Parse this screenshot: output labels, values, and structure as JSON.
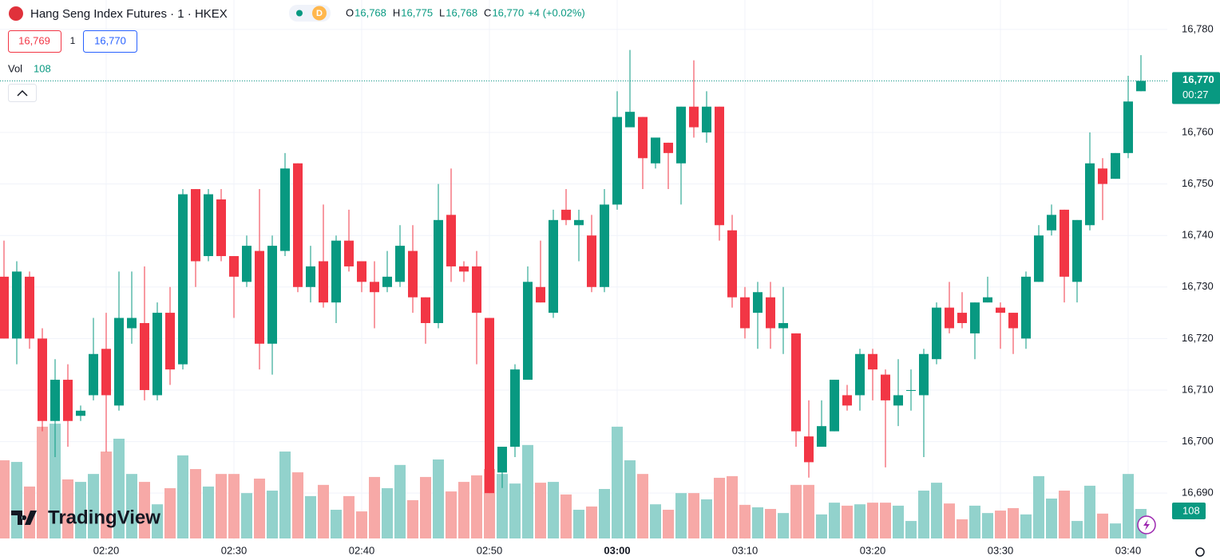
{
  "chart_data": {
    "type": "candlestick",
    "title": "Hang Seng Index Futures · 1 · HKEX",
    "badge": "D",
    "legend_keys": [
      "O",
      "H",
      "L",
      "C"
    ],
    "legend_values": [
      "16,768",
      "16,775",
      "16,768",
      "16,770"
    ],
    "change": "+4 (+0.02%)",
    "bid": "16,769",
    "spread": "1",
    "ask": "16,770",
    "volume_label": "Vol",
    "volume_value": "108",
    "last_price": {
      "value": 16770,
      "label": "16,770"
    },
    "countdown": "00:27",
    "last_volume": "108",
    "logo": "TradingView",
    "categories": [
      null,
      null,
      null,
      null,
      null,
      null,
      null,
      null,
      "02:20",
      null,
      null,
      null,
      null,
      null,
      null,
      null,
      null,
      null,
      "02:30",
      null,
      null,
      null,
      null,
      null,
      null,
      null,
      null,
      null,
      "02:40",
      null,
      null,
      null,
      null,
      null,
      null,
      null,
      null,
      null,
      "02:50",
      null,
      null,
      null,
      null,
      null,
      null,
      null,
      null,
      null,
      "03:00",
      null,
      null,
      null,
      null,
      null,
      null,
      null,
      null,
      null,
      "03:10",
      null,
      null,
      null,
      null,
      null,
      null,
      null,
      null,
      null,
      "03:20",
      null,
      null,
      null,
      null,
      null,
      null,
      null,
      null,
      null,
      "03:30",
      null,
      null,
      null,
      null,
      null,
      null,
      null,
      null,
      null,
      "03:40",
      null
    ],
    "open": [
      16732,
      16720,
      16732,
      16720,
      16704,
      16712,
      16705,
      16709,
      16718,
      16707,
      16722,
      16723,
      16709,
      16725,
      16715,
      16749,
      16736,
      16747,
      16736,
      16731,
      16737,
      16719,
      16737,
      16754,
      16730,
      16735,
      16727,
      16739,
      16735,
      16731,
      16730,
      16731,
      16737,
      16728,
      16723,
      16744,
      16734,
      16734,
      16724,
      16694,
      16699,
      16712,
      16730,
      16725,
      16745,
      16742,
      16740,
      16730,
      16746,
      16761,
      16763,
      16754,
      16758,
      16754,
      16765,
      16760,
      16765,
      16741,
      16728,
      16725,
      16728,
      16722,
      16721,
      16701,
      16699,
      16702,
      16709,
      16709,
      16717,
      16713,
      16707,
      16710,
      16709,
      16716,
      16726,
      16725,
      16721,
      16727,
      16726,
      16725,
      16720,
      16731,
      16741,
      16745,
      16731,
      16742,
      16753,
      16751,
      16756,
      16768
    ],
    "high": [
      16739,
      16735,
      16733,
      16722,
      16716,
      16715,
      16707,
      16724,
      16725,
      16733,
      16733,
      16734,
      16727,
      16730,
      16749,
      16749,
      16749,
      16749,
      16736,
      16740,
      16749,
      16740,
      16756,
      16754,
      16738,
      16746,
      16740,
      16745,
      16735,
      16735,
      16737,
      16742,
      16742,
      16728,
      16750,
      16753,
      16735,
      16737,
      16724,
      16699,
      16715,
      16734,
      16739,
      16745,
      16749,
      16745,
      16744,
      16749,
      16768,
      16776,
      16763,
      16759,
      16758,
      16765,
      16774,
      16768,
      16765,
      16744,
      16730,
      16731,
      16731,
      16730,
      16721,
      16708,
      16708,
      16712,
      16711,
      16718,
      16718,
      16714,
      16716,
      16714,
      16718,
      16727,
      16731,
      16729,
      16727,
      16732,
      16727,
      16725,
      16733,
      16742,
      16746,
      16745,
      16743,
      16760,
      16755,
      16756,
      16771,
      16775
    ],
    "low": [
      16720,
      16715,
      16718,
      16702,
      16697,
      16699,
      16704,
      16708,
      16698,
      16706,
      16719,
      16708,
      16708,
      16711,
      16714,
      16730,
      16735,
      16735,
      16724,
      16730,
      16714,
      16713,
      16736,
      16729,
      16727,
      16726,
      16723,
      16733,
      16729,
      16722,
      16729,
      16730,
      16725,
      16719,
      16722,
      16731,
      16731,
      16715,
      16690,
      16691,
      16697,
      16712,
      16727,
      16724,
      16742,
      16735,
      16729,
      16729,
      16745,
      16761,
      16749,
      16753,
      16749,
      16746,
      16759,
      16758,
      16739,
      16726,
      16720,
      16718,
      16718,
      16717,
      16699,
      16693,
      16699,
      16702,
      16706,
      16706,
      16708,
      16695,
      16703,
      16706,
      16697,
      16715,
      16721,
      16722,
      16716,
      16727,
      16718,
      16717,
      16718,
      16731,
      16740,
      16727,
      16727,
      16741,
      16743,
      16751,
      16755,
      16768
    ],
    "close": [
      16720,
      16733,
      16720,
      16704,
      16712,
      16704,
      16706,
      16717,
      16709,
      16724,
      16724,
      16710,
      16725,
      16714,
      16748,
      16735,
      16748,
      16736,
      16732,
      16738,
      16719,
      16738,
      16753,
      16730,
      16734,
      16727,
      16739,
      16734,
      16731,
      16729,
      16732,
      16738,
      16728,
      16723,
      16743,
      16734,
      16733,
      16725,
      16690,
      16699,
      16714,
      16731,
      16727,
      16743,
      16743,
      16743,
      16730,
      16746,
      16763,
      16764,
      16755,
      16759,
      16756,
      16765,
      16761,
      16765,
      16742,
      16728,
      16722,
      16729,
      16722,
      16723,
      16702,
      16696,
      16703,
      16712,
      16707,
      16717,
      16714,
      16708,
      16709,
      16710,
      16717,
      16726,
      16722,
      16723,
      16727,
      16728,
      16725,
      16722,
      16732,
      16740,
      16744,
      16732,
      16743,
      16754,
      16750,
      16756,
      16766,
      16770
    ],
    "volume": [
      286,
      280,
      190,
      409,
      420,
      216,
      207,
      236,
      318,
      365,
      236,
      207,
      125,
      184,
      304,
      254,
      190,
      236,
      236,
      166,
      219,
      175,
      318,
      242,
      155,
      196,
      105,
      155,
      99,
      225,
      184,
      269,
      140,
      225,
      289,
      172,
      207,
      231,
      254,
      236,
      201,
      342,
      204,
      207,
      161,
      105,
      117,
      181,
      409,
      286,
      236,
      125,
      105,
      166,
      166,
      143,
      222,
      228,
      123,
      114,
      108,
      93,
      196,
      196,
      88,
      131,
      120,
      125,
      131,
      131,
      120,
      64,
      175,
      204,
      128,
      70,
      120,
      93,
      102,
      111,
      88,
      228,
      146,
      175,
      64,
      193,
      91,
      55,
      236,
      108
    ],
    "up_color": "#089981",
    "down_color": "#f23645",
    "up_volume_color": "#92d2cc",
    "down_volume_color": "#f7a9a7",
    "ylim": [
      16681.2,
      16785.7
    ],
    "yticks": [
      {
        "value": 16780,
        "label": "16,780"
      },
      {
        "value": 16770,
        "label": "16,770"
      },
      {
        "value": 16760,
        "label": "16,760"
      },
      {
        "value": 16750,
        "label": "16,750"
      },
      {
        "value": 16740,
        "label": "16,740"
      },
      {
        "value": 16730,
        "label": "16,730"
      },
      {
        "value": 16720,
        "label": "16,720"
      },
      {
        "value": 16710,
        "label": "16,710"
      },
      {
        "value": 16700,
        "label": "16,700"
      },
      {
        "value": 16690,
        "label": "16,690"
      }
    ],
    "grid": true
  }
}
